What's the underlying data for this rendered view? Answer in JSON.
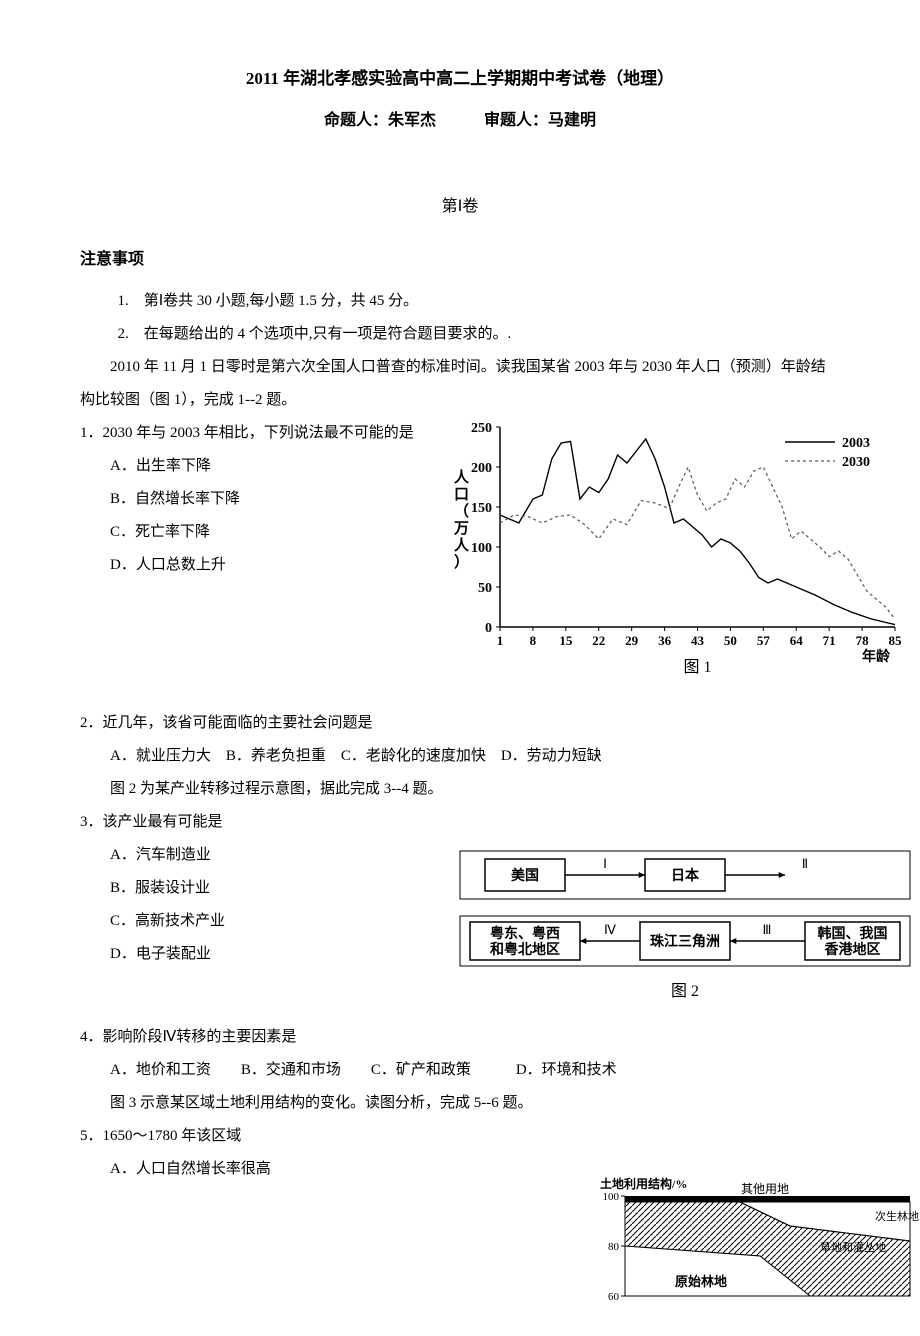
{
  "title": "2011 年湖北孝感实验高中高二上学期期中考试卷（地理）",
  "authors": "命题人：朱军杰　　　审题人：马建明",
  "section1": "第Ⅰ卷",
  "notice_head": "注意事项",
  "notice_items": [
    "1.　第Ⅰ卷共 30 小题,每小题 1.5 分，共 45 分。",
    "2.　在每题给出的 4 个选项中,只有一项是符合题目要求的。."
  ],
  "intro1": "2010 年 11 月 1 日零时是第六次全国人口普查的标准时间。读我国某省 2003 年与 2030 年人口（预测）年龄结构比较图（图 1），完成 1--2 题。",
  "q1": "1．2030 年与 2003 年相比，下列说法最不可能的是",
  "q1_opts": [
    "A．出生率下降",
    "B．自然增长率下降",
    "C．死亡率下降",
    "D．人口总数上升"
  ],
  "chart1": {
    "type": "line",
    "y_label_chars": [
      "人",
      "口",
      "（",
      "万",
      "人",
      "）"
    ],
    "x_label": "年龄",
    "xticks": [
      1,
      8,
      15,
      22,
      29,
      36,
      43,
      50,
      57,
      64,
      71,
      78,
      85
    ],
    "yticks": [
      0,
      50,
      100,
      150,
      200,
      250
    ],
    "legend": [
      "2003",
      "2030"
    ],
    "series_2003": {
      "color": "#000",
      "dash": "0",
      "width": 1.4,
      "points": [
        [
          1,
          140
        ],
        [
          3,
          135
        ],
        [
          5,
          130
        ],
        [
          7,
          150
        ],
        [
          8,
          160
        ],
        [
          10,
          165
        ],
        [
          12,
          210
        ],
        [
          14,
          230
        ],
        [
          16,
          232
        ],
        [
          18,
          160
        ],
        [
          20,
          175
        ],
        [
          22,
          168
        ],
        [
          24,
          185
        ],
        [
          26,
          215
        ],
        [
          28,
          205
        ],
        [
          30,
          220
        ],
        [
          32,
          235
        ],
        [
          34,
          210
        ],
        [
          36,
          175
        ],
        [
          38,
          130
        ],
        [
          40,
          135
        ],
        [
          42,
          125
        ],
        [
          44,
          115
        ],
        [
          46,
          100
        ],
        [
          48,
          110
        ],
        [
          50,
          105
        ],
        [
          52,
          95
        ],
        [
          54,
          80
        ],
        [
          56,
          62
        ],
        [
          58,
          55
        ],
        [
          60,
          60
        ],
        [
          62,
          55
        ],
        [
          64,
          50
        ],
        [
          68,
          40
        ],
        [
          72,
          28
        ],
        [
          76,
          18
        ],
        [
          80,
          10
        ],
        [
          85,
          3
        ]
      ]
    },
    "series_2030": {
      "color": "#555",
      "dash": "3,3",
      "width": 1.2,
      "points": [
        [
          1,
          130
        ],
        [
          4,
          140
        ],
        [
          7,
          138
        ],
        [
          10,
          130
        ],
        [
          13,
          138
        ],
        [
          16,
          140
        ],
        [
          19,
          128
        ],
        [
          22,
          110
        ],
        [
          25,
          135
        ],
        [
          28,
          128
        ],
        [
          31,
          158
        ],
        [
          34,
          155
        ],
        [
          37,
          148
        ],
        [
          39,
          175
        ],
        [
          41,
          200
        ],
        [
          43,
          165
        ],
        [
          45,
          145
        ],
        [
          47,
          155
        ],
        [
          49,
          160
        ],
        [
          51,
          185
        ],
        [
          53,
          175
        ],
        [
          55,
          195
        ],
        [
          57,
          200
        ],
        [
          59,
          175
        ],
        [
          61,
          150
        ],
        [
          63,
          110
        ],
        [
          65,
          120
        ],
        [
          67,
          110
        ],
        [
          69,
          100
        ],
        [
          71,
          88
        ],
        [
          73,
          95
        ],
        [
          75,
          85
        ],
        [
          77,
          65
        ],
        [
          79,
          45
        ],
        [
          81,
          35
        ],
        [
          83,
          25
        ],
        [
          85,
          10
        ]
      ]
    },
    "caption": "图 1"
  },
  "q2": "2．近几年，该省可能面临的主要社会问题是",
  "q2_opts": "A．就业压力大　B．养老负担重　C．老龄化的速度加快　D．劳动力短缺",
  "intro2": "图 2 为某产业转移过程示意图，据此完成 3--4 题。",
  "q3": "3．该产业最有可能是",
  "q3_opts": [
    "A．汽车制造业",
    "B．服装设计业",
    "C．高新技术产业",
    "D．电子装配业"
  ],
  "flow": {
    "boxes": {
      "us": "美国",
      "jp": "日本",
      "hk": "韩国、我国\n香港地区",
      "prd": "珠江三角洲",
      "gd": "粤东、粤西\n和粤北地区"
    },
    "arrows": {
      "I": "Ⅰ",
      "II": "Ⅱ",
      "III": "Ⅲ",
      "IV": "Ⅳ"
    },
    "caption": "图 2"
  },
  "q4": "4．影响阶段Ⅳ转移的主要因素是",
  "q4_opts": "A．地价和工资　　B．交通和市场　　C．矿产和政策　　　D．环境和技术",
  "intro3": "图 3 示意某区域土地利用结构的变化。读图分析，完成 5--6 题。",
  "q5": "5．1650～1780 年该区域",
  "q5_opts_partial": "A．人口自然增长率很高",
  "area": {
    "y_label": "土地利用结构/%",
    "yticks": [
      100,
      80,
      60
    ],
    "labels": {
      "other": "其他用地",
      "forest2": "次生林地",
      "grass": "草地和灌丛地",
      "forest": "原始林地"
    }
  }
}
